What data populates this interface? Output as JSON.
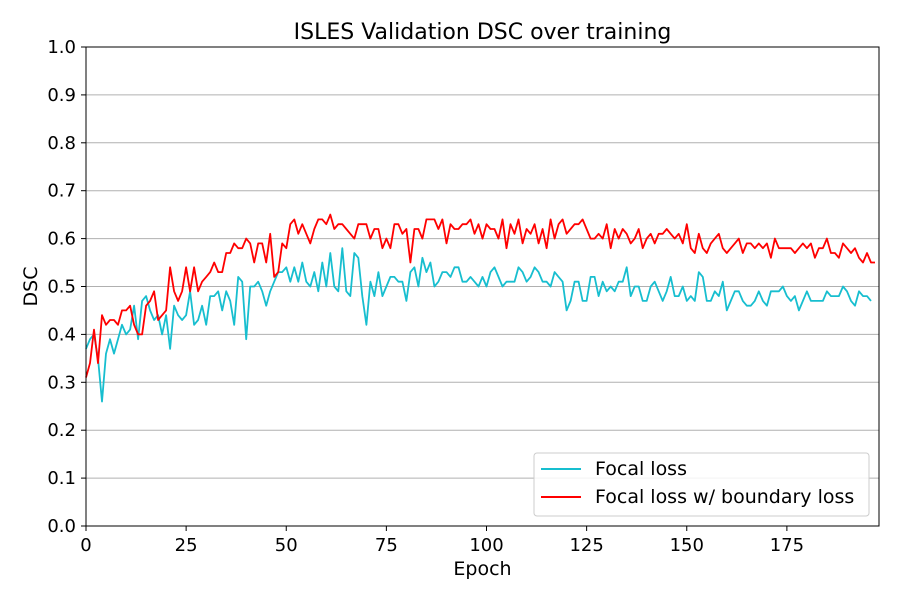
{
  "chart_data": {
    "type": "line",
    "title": "ISLES Validation DSC over training",
    "xlabel": "Epoch",
    "ylabel": "DSC",
    "xlim": [
      0,
      198
    ],
    "ylim": [
      0.0,
      1.0
    ],
    "xticks": [
      0,
      25,
      50,
      75,
      100,
      125,
      150,
      175
    ],
    "yticks": [
      0.0,
      0.1,
      0.2,
      0.3,
      0.4,
      0.5,
      0.6,
      0.7,
      0.8,
      0.9,
      1.0
    ],
    "grid": "horizontal",
    "legend_position": "lower-right",
    "series": [
      {
        "name": "Focal loss",
        "color": "#17becf",
        "values": [
          0.37,
          0.39,
          0.4,
          0.35,
          0.26,
          0.36,
          0.39,
          0.36,
          0.39,
          0.42,
          0.4,
          0.41,
          0.46,
          0.39,
          0.47,
          0.48,
          0.45,
          0.43,
          0.44,
          0.4,
          0.44,
          0.37,
          0.46,
          0.44,
          0.43,
          0.44,
          0.49,
          0.42,
          0.43,
          0.46,
          0.42,
          0.48,
          0.48,
          0.49,
          0.45,
          0.49,
          0.47,
          0.42,
          0.52,
          0.51,
          0.39,
          0.5,
          0.5,
          0.51,
          0.49,
          0.46,
          0.49,
          0.51,
          0.53,
          0.53,
          0.54,
          0.51,
          0.54,
          0.51,
          0.55,
          0.51,
          0.5,
          0.53,
          0.49,
          0.55,
          0.5,
          0.57,
          0.5,
          0.49,
          0.58,
          0.49,
          0.48,
          0.57,
          0.56,
          0.48,
          0.42,
          0.51,
          0.48,
          0.53,
          0.48,
          0.5,
          0.52,
          0.52,
          0.51,
          0.51,
          0.47,
          0.53,
          0.54,
          0.5,
          0.56,
          0.53,
          0.55,
          0.5,
          0.51,
          0.53,
          0.53,
          0.52,
          0.54,
          0.54,
          0.51,
          0.51,
          0.52,
          0.51,
          0.5,
          0.52,
          0.5,
          0.53,
          0.54,
          0.52,
          0.5,
          0.51,
          0.51,
          0.51,
          0.54,
          0.53,
          0.51,
          0.52,
          0.54,
          0.53,
          0.51,
          0.51,
          0.5,
          0.53,
          0.52,
          0.51,
          0.45,
          0.47,
          0.51,
          0.51,
          0.47,
          0.47,
          0.52,
          0.52,
          0.48,
          0.51,
          0.49,
          0.5,
          0.49,
          0.51,
          0.51,
          0.54,
          0.48,
          0.5,
          0.5,
          0.47,
          0.47,
          0.5,
          0.51,
          0.49,
          0.47,
          0.49,
          0.52,
          0.48,
          0.48,
          0.5,
          0.47,
          0.48,
          0.47,
          0.53,
          0.52,
          0.47,
          0.47,
          0.49,
          0.48,
          0.51,
          0.45,
          0.47,
          0.49,
          0.49,
          0.47,
          0.46,
          0.46,
          0.47,
          0.49,
          0.47,
          0.46,
          0.49,
          0.49,
          0.49,
          0.5,
          0.48,
          0.47,
          0.48,
          0.45,
          0.47,
          0.49,
          0.47,
          0.47,
          0.47,
          0.47,
          0.49,
          0.48,
          0.48,
          0.48,
          0.5,
          0.49,
          0.47,
          0.46,
          0.49,
          0.48,
          0.48,
          0.47
        ]
      },
      {
        "name": "Focal loss w/ boundary loss",
        "color": "#ff0000",
        "values": [
          0.31,
          0.34,
          0.41,
          0.34,
          0.44,
          0.42,
          0.43,
          0.43,
          0.42,
          0.45,
          0.45,
          0.46,
          0.42,
          0.4,
          0.4,
          0.46,
          0.47,
          0.49,
          0.43,
          0.44,
          0.45,
          0.54,
          0.49,
          0.47,
          0.49,
          0.54,
          0.49,
          0.54,
          0.49,
          0.51,
          0.52,
          0.53,
          0.55,
          0.53,
          0.53,
          0.57,
          0.57,
          0.59,
          0.58,
          0.58,
          0.6,
          0.59,
          0.55,
          0.59,
          0.59,
          0.55,
          0.61,
          0.52,
          0.53,
          0.59,
          0.58,
          0.63,
          0.64,
          0.61,
          0.63,
          0.61,
          0.59,
          0.62,
          0.64,
          0.64,
          0.63,
          0.65,
          0.62,
          0.63,
          0.63,
          0.62,
          0.61,
          0.6,
          0.63,
          0.63,
          0.63,
          0.6,
          0.62,
          0.62,
          0.58,
          0.6,
          0.58,
          0.63,
          0.63,
          0.61,
          0.62,
          0.55,
          0.62,
          0.62,
          0.6,
          0.64,
          0.64,
          0.64,
          0.62,
          0.64,
          0.59,
          0.63,
          0.62,
          0.62,
          0.63,
          0.63,
          0.64,
          0.61,
          0.63,
          0.6,
          0.63,
          0.62,
          0.62,
          0.6,
          0.64,
          0.58,
          0.63,
          0.61,
          0.64,
          0.59,
          0.62,
          0.61,
          0.63,
          0.59,
          0.62,
          0.58,
          0.64,
          0.6,
          0.63,
          0.64,
          0.61,
          0.62,
          0.63,
          0.63,
          0.64,
          0.62,
          0.6,
          0.6,
          0.61,
          0.6,
          0.63,
          0.58,
          0.62,
          0.6,
          0.62,
          0.61,
          0.59,
          0.6,
          0.62,
          0.58,
          0.6,
          0.61,
          0.59,
          0.61,
          0.61,
          0.62,
          0.61,
          0.6,
          0.61,
          0.59,
          0.63,
          0.58,
          0.57,
          0.61,
          0.58,
          0.57,
          0.59,
          0.6,
          0.61,
          0.58,
          0.57,
          0.58,
          0.59,
          0.6,
          0.57,
          0.59,
          0.59,
          0.58,
          0.59,
          0.58,
          0.59,
          0.56,
          0.6,
          0.58,
          0.58,
          0.58,
          0.58,
          0.57,
          0.58,
          0.59,
          0.58,
          0.59,
          0.56,
          0.58,
          0.58,
          0.6,
          0.57,
          0.57,
          0.56,
          0.59,
          0.58,
          0.57,
          0.58,
          0.56,
          0.55,
          0.57,
          0.55,
          0.55
        ]
      }
    ]
  }
}
